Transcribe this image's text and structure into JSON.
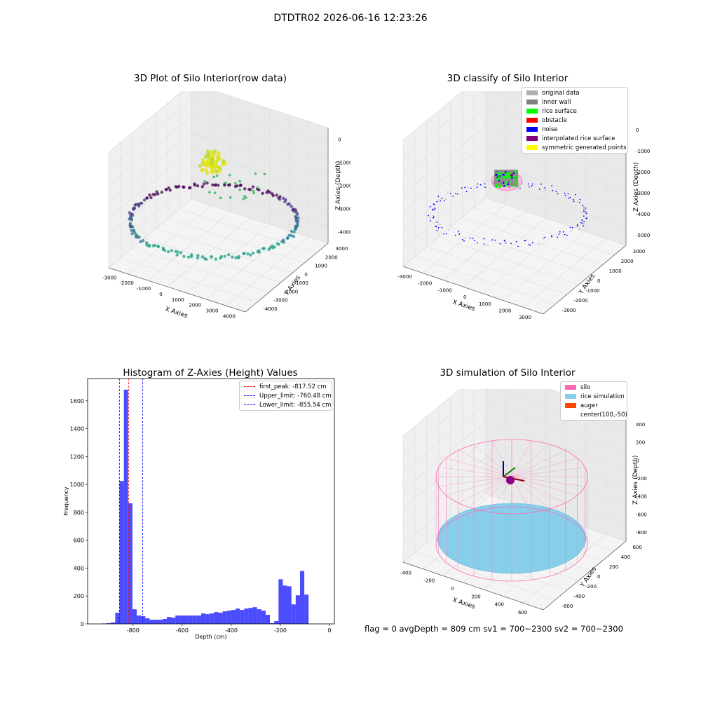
{
  "suptitle": "DTDTR02 2026-06-16 12:23:26",
  "footer": "flag = 0     avgDepth = 809 cm  sv1 = 700~2300  sv2 = 700~2300",
  "chart_data": [
    {
      "type": "scatter",
      "title": "3D Plot of Silo Interior(row data)",
      "xlabel": "X Axies",
      "ylabel": "Y Axies",
      "zlabel": "Z Axies (Depth)",
      "xticks": [
        "-3000",
        "-2000",
        "-1000",
        "0",
        "1000",
        "2000",
        "3000",
        "4000"
      ],
      "yticks": [
        "-4000",
        "-3000",
        "-2000",
        "-1000",
        "0",
        "1000",
        "2000",
        "3000"
      ],
      "zticks": [
        "0",
        "-1000",
        "-2000",
        "-3000",
        "-4000"
      ],
      "xlim": [
        -3000,
        4000
      ],
      "ylim": [
        -4000,
        3000
      ],
      "zlim": [
        -4500,
        0
      ],
      "colormap": "viridis",
      "grid": true
    },
    {
      "type": "scatter",
      "title": "3D classify of Silo Interior",
      "xlabel": "X Axies",
      "ylabel": "Y Axies",
      "zlabel": "Z Axies (Depth)",
      "xticks": [
        "-3000",
        "-2000",
        "-1000",
        "0",
        "1000",
        "2000",
        "3000"
      ],
      "yticks": [
        "-3000",
        "-2000",
        "-1000",
        "0",
        "1000",
        "2000",
        "3000"
      ],
      "zticks": [
        "0",
        "-1000",
        "-2000",
        "-3000",
        "-4000",
        "-5000"
      ],
      "zticks_top_extra": "1000",
      "legend": [
        {
          "name": "original data",
          "color": "#b0b0b0"
        },
        {
          "name": "inner wall",
          "color": "#808080"
        },
        {
          "name": "rice surface",
          "color": "#00ff00"
        },
        {
          "name": "obstacle",
          "color": "#ff0000"
        },
        {
          "name": "noise",
          "color": "#0000ff"
        },
        {
          "name": "interpolated rice surface",
          "color": "#800080"
        },
        {
          "name": "symmetric generated points",
          "color": "#ffff00"
        }
      ],
      "legend_position": "top-right",
      "grid": true
    },
    {
      "type": "bar",
      "title": "Histogram of Z-Axies (Height) Values",
      "xlabel": "Depth (cm)",
      "ylabel": "Frequency",
      "xlim": [
        -985,
        20
      ],
      "ylim": [
        0,
        1760
      ],
      "xticks": [
        -800,
        -600,
        -400,
        -200,
        0
      ],
      "yticks": [
        0,
        200,
        400,
        600,
        800,
        1000,
        1200,
        1400,
        1600
      ],
      "bar_color": "#0000ff",
      "bin_width": 17.5,
      "bin_starts": [
        -925,
        -907.5,
        -890,
        -872.5,
        -855,
        -837.5,
        -820,
        -802.5,
        -785,
        -767.5,
        -750,
        -732.5,
        -715,
        -697.5,
        -680,
        -662.5,
        -645,
        -627.5,
        -610,
        -592.5,
        -575,
        -557.5,
        -540,
        -522.5,
        -505,
        -487.5,
        -470,
        -452.5,
        -435,
        -417.5,
        -400,
        -382.5,
        -365,
        -347.5,
        -330,
        -312.5,
        -295,
        -277.5,
        -260,
        -242.5,
        -225,
        -207.5,
        -190,
        -172.5,
        -155,
        -137.5,
        -120,
        -102.5,
        -85,
        -67.5,
        -50,
        -32.5,
        -15
      ],
      "values": [
        3,
        5,
        10,
        80,
        1025,
        1680,
        865,
        105,
        60,
        55,
        40,
        30,
        30,
        30,
        35,
        50,
        45,
        60,
        60,
        60,
        60,
        60,
        60,
        75,
        70,
        75,
        85,
        80,
        90,
        95,
        100,
        110,
        100,
        110,
        115,
        120,
        105,
        95,
        65,
        5,
        20,
        320,
        275,
        270,
        140,
        205,
        380,
        210,
        0,
        0,
        0,
        0,
        0
      ],
      "reference_lines": [
        {
          "label": "first_peak: -817.52 cm",
          "value": -817.52,
          "color": "#ff0000"
        },
        {
          "label": "Upper_limit: -760.48 cm",
          "value": -760.48,
          "color": "#0000ff"
        },
        {
          "label": "Lower_limit: -855.54 cm",
          "value": -855.54,
          "color": "#0000ff"
        }
      ],
      "legend_position": "top-right"
    },
    {
      "type": "surface",
      "title": "3D simulation of Silo Interior",
      "xlabel": "X Axies",
      "ylabel": "Y Axies",
      "zlabel": "Z Axies (Depth)",
      "xticks": [
        "-400",
        "-200",
        "0",
        "200",
        "400",
        "600"
      ],
      "yticks": [
        "-600",
        "-400",
        "-200",
        "0",
        "200",
        "400",
        "600"
      ],
      "zticks": [
        "400",
        "200",
        "0",
        "-200",
        "-400",
        "-600",
        "-800"
      ],
      "legend": [
        {
          "name": "silo",
          "color": "#ff69b4"
        },
        {
          "name": "rice simulation",
          "color": "#87ceeb"
        },
        {
          "name": "auger",
          "color": "#ff4500"
        },
        {
          "name": "center(100,-50)",
          "color": ""
        }
      ],
      "legend_position": "top-right",
      "grid": true
    }
  ]
}
